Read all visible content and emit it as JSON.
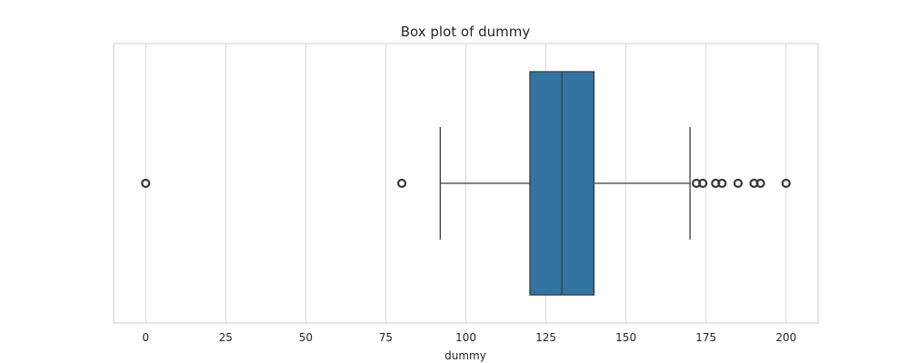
{
  "chart_data": {
    "type": "box",
    "title": "Box plot of dummy",
    "xlabel": "dummy",
    "ylabel": "",
    "xlim": [
      -10,
      210
    ],
    "xticks": [
      0,
      25,
      50,
      75,
      100,
      125,
      150,
      175,
      200
    ],
    "xtick_labels": [
      "0",
      "25",
      "50",
      "75",
      "100",
      "125",
      "150",
      "175",
      "200"
    ],
    "grid": true,
    "orientation": "horizontal",
    "box": {
      "whisker_low": 92,
      "q1": 120,
      "median": 130,
      "q3": 140,
      "whisker_high": 170
    },
    "outliers": [
      0,
      80,
      172,
      174,
      178,
      180,
      185,
      190,
      192,
      200
    ],
    "colors": {
      "box_fill": "#3274a1",
      "line": "#3a3a3a",
      "grid": "#d9d9d9",
      "frame": "#cccccc"
    }
  }
}
